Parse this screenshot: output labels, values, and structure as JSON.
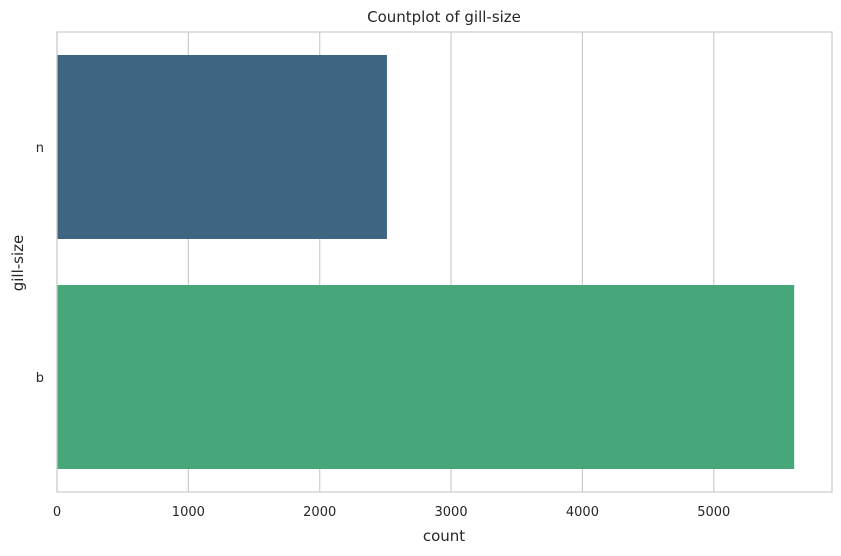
{
  "chart_data": {
    "type": "bar",
    "orientation": "horizontal",
    "title": "Countplot of gill-size",
    "xlabel": "count",
    "ylabel": "gill-size",
    "categories": [
      "n",
      "b"
    ],
    "values": [
      2512,
      5612
    ],
    "colors": [
      "#3e6681",
      "#47a77a"
    ],
    "xlim": [
      0,
      5900
    ],
    "xticks": [
      0,
      1000,
      2000,
      3000,
      4000,
      5000
    ],
    "grid": "vertical"
  }
}
